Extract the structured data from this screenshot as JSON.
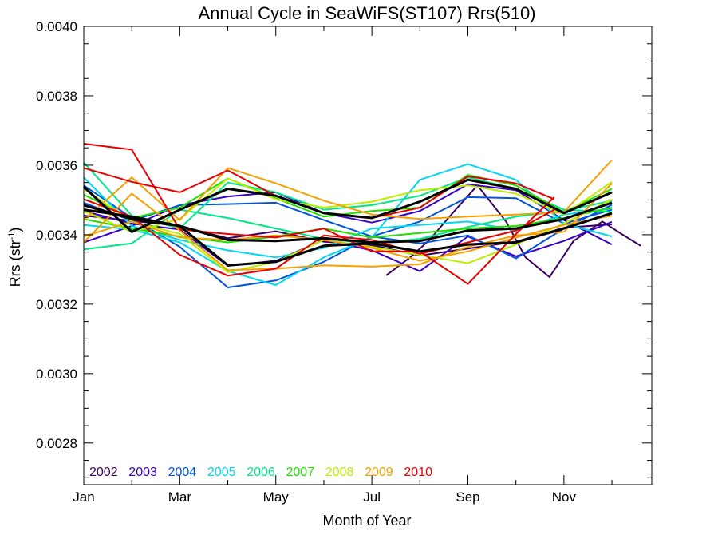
{
  "chart_data": {
    "type": "line",
    "title": "Annual Cycle in SeaWiFS(ST107) Rrs(510)",
    "xlabel": "Month of Year",
    "ylabel": {
      "main": "Rrs (str",
      "sup": "-1",
      "close": ")"
    },
    "x_ticks": [
      {
        "value": 1,
        "label": "Jan"
      },
      {
        "value": 3,
        "label": "Mar"
      },
      {
        "value": 5,
        "label": "May"
      },
      {
        "value": 7,
        "label": "Jul"
      },
      {
        "value": 9,
        "label": "Sep"
      },
      {
        "value": 11,
        "label": "Nov"
      }
    ],
    "xlim": [
      1,
      12.83
    ],
    "ylim": [
      0.00268,
      0.004
    ],
    "y_ticks": [
      "0.0028",
      "0.0030",
      "0.0032",
      "0.0034",
      "0.0036",
      "0.0038",
      "0.0040"
    ],
    "grid": false,
    "legend_position": "bottom-left",
    "series": [
      {
        "name": "2002",
        "color": "#3b0060",
        "x": [
          7.3,
          7.8,
          8.2,
          8.7,
          9.2,
          9.8,
          10.2,
          10.7,
          11.2,
          11.8,
          12.2,
          12.6
        ],
        "y": [
          0.003283,
          0.003335,
          0.003385,
          0.003465,
          0.003542,
          0.003437,
          0.003335,
          0.003278,
          0.003382,
          0.003438,
          0.003402,
          0.003368
        ]
      },
      {
        "name": "2002",
        "color": "#3b0060",
        "x": [
          1,
          2,
          3,
          4,
          5,
          6,
          7,
          8,
          9,
          10,
          11,
          12
        ],
        "y": [
          0.003455,
          0.00344,
          0.003425,
          0.00339,
          0.00341,
          0.00338,
          0.00337,
          0.00334,
          0.00336,
          0.00338,
          0.00342,
          0.00343
        ]
      },
      {
        "name": "2003",
        "color": "#3a00c8",
        "x": [
          1,
          2,
          3,
          4,
          5,
          6,
          7,
          8,
          9,
          10,
          11,
          12
        ],
        "y": [
          0.003468,
          0.003432,
          0.003415,
          0.00331,
          0.003325,
          0.003385,
          0.003355,
          0.003295,
          0.003395,
          0.003338,
          0.003382,
          0.003437
        ]
      },
      {
        "name": "2003",
        "color": "#3a00c8",
        "x": [
          1,
          2,
          3,
          4,
          5,
          6,
          7,
          8,
          9,
          10,
          11,
          12
        ],
        "y": [
          0.003378,
          0.003425,
          0.003485,
          0.00351,
          0.003522,
          0.003462,
          0.003435,
          0.003468,
          0.003545,
          0.003528,
          0.003442,
          0.003372
        ]
      },
      {
        "name": "2004",
        "color": "#0055e0",
        "x": [
          1,
          2,
          3,
          4,
          5,
          6,
          7,
          8,
          9,
          10,
          11,
          12
        ],
        "y": [
          0.003542,
          0.003448,
          0.003365,
          0.003248,
          0.003268,
          0.003322,
          0.003395,
          0.003375,
          0.003398,
          0.003332,
          0.003418,
          0.003486
        ]
      },
      {
        "name": "2004",
        "color": "#0055e0",
        "x": [
          1,
          2,
          3,
          4,
          5,
          6,
          7,
          8,
          9,
          10,
          11,
          12
        ],
        "y": [
          0.003492,
          0.00344,
          0.003485,
          0.003488,
          0.003492,
          0.003442,
          0.003395,
          0.003438,
          0.003508,
          0.003505,
          0.003432,
          0.003472
        ]
      },
      {
        "name": "2005",
        "color": "#00d8f0",
        "x": [
          1,
          2,
          3,
          4,
          5,
          6,
          7,
          8,
          9,
          10,
          11,
          12
        ],
        "y": [
          0.003428,
          0.003415,
          0.003378,
          0.003295,
          0.003255,
          0.003335,
          0.003392,
          0.003558,
          0.003603,
          0.003558,
          0.003432,
          0.003395
        ]
      },
      {
        "name": "2005",
        "color": "#00d8f0",
        "x": [
          1,
          2,
          3,
          4,
          5,
          6,
          7,
          8,
          9,
          10,
          11,
          12
        ],
        "y": [
          0.003565,
          0.003425,
          0.003385,
          0.003355,
          0.003335,
          0.003362,
          0.003418,
          0.003428,
          0.003438,
          0.003412,
          0.003458,
          0.003475
        ]
      },
      {
        "name": "2006",
        "color": "#00e884",
        "x": [
          1,
          2,
          3,
          4,
          5,
          6,
          7,
          8,
          9,
          10,
          11,
          12
        ],
        "y": [
          0.003608,
          0.003455,
          0.003418,
          0.00355,
          0.003522,
          0.003472,
          0.003485,
          0.003512,
          0.003565,
          0.003532,
          0.003472,
          0.003465
        ]
      },
      {
        "name": "2006",
        "color": "#00e884",
        "x": [
          1,
          2,
          3,
          4,
          5,
          6,
          7,
          8,
          9,
          10,
          11,
          12
        ],
        "y": [
          0.003358,
          0.003375,
          0.003472,
          0.003448,
          0.003418,
          0.003388,
          0.003375,
          0.003388,
          0.003422,
          0.003452,
          0.003468,
          0.003498
        ]
      },
      {
        "name": "2007",
        "color": "#22dd00",
        "x": [
          1,
          2,
          3,
          4,
          5,
          6,
          7,
          8,
          9,
          10,
          11,
          12
        ],
        "y": [
          0.003515,
          0.003448,
          0.003478,
          0.003562,
          0.003505,
          0.003452,
          0.003468,
          0.003478,
          0.003572,
          0.003542,
          0.003465,
          0.003532
        ]
      },
      {
        "name": "2007",
        "color": "#22dd00",
        "x": [
          1,
          2,
          3,
          4,
          5,
          6,
          7,
          8,
          9,
          10,
          11,
          12
        ],
        "y": [
          0.003445,
          0.003418,
          0.003395,
          0.003378,
          0.003395,
          0.003418,
          0.003392,
          0.003405,
          0.003418,
          0.003425,
          0.003448,
          0.003478
        ]
      },
      {
        "name": "2008",
        "color": "#bbee00",
        "x": [
          1,
          2,
          3,
          4,
          5,
          6,
          7,
          8,
          9,
          10,
          11,
          12
        ],
        "y": [
          0.003532,
          0.003438,
          0.003402,
          0.003292,
          0.003322,
          0.003385,
          0.003365,
          0.003342,
          0.003318,
          0.003372,
          0.003432,
          0.003502
        ]
      },
      {
        "name": "2008",
        "color": "#bbee00",
        "x": [
          1,
          2,
          3,
          4,
          5,
          6,
          7,
          8,
          9,
          10,
          11,
          12
        ],
        "y": [
          0.003468,
          0.003408,
          0.003445,
          0.003562,
          0.003502,
          0.003478,
          0.003495,
          0.003528,
          0.003542,
          0.003518,
          0.003458,
          0.003552
        ]
      },
      {
        "name": "2009",
        "color": "#f5a000",
        "x": [
          1,
          2,
          3,
          4,
          5,
          6,
          7,
          8,
          9,
          10,
          11,
          12
        ],
        "y": [
          0.003442,
          0.003565,
          0.003442,
          0.003592,
          0.003548,
          0.003498,
          0.003458,
          0.003445,
          0.003452,
          0.003458,
          0.003465,
          0.003615
        ]
      },
      {
        "name": "2009",
        "color": "#f5a000",
        "x": [
          1,
          2,
          3,
          4,
          5,
          6,
          7,
          8,
          9,
          10,
          11,
          12
        ],
        "y": [
          0.003378,
          0.003518,
          0.003412,
          0.003298,
          0.003302,
          0.003312,
          0.003308,
          0.003315,
          0.003365,
          0.003398,
          0.003408,
          0.003548
        ]
      },
      {
        "name": "2009",
        "color": "#f5a000",
        "x": [
          1,
          2,
          3,
          4,
          5,
          6,
          7,
          8,
          9,
          10,
          11,
          12
        ],
        "y": [
          0.003395,
          0.003438,
          0.003392,
          0.003385,
          0.003398,
          0.003385,
          0.003362,
          0.003325,
          0.003352,
          0.003392,
          0.003428,
          0.003455
        ]
      },
      {
        "name": "2010",
        "color": "#e80000",
        "x": [
          1,
          2,
          3,
          4,
          5,
          6,
          7,
          8,
          9,
          10,
          10.8
        ],
        "y": [
          0.003662,
          0.003645,
          0.003415,
          0.003402,
          0.003392,
          0.003418,
          0.003352,
          0.003352,
          0.003258,
          0.003402,
          0.003508
        ]
      },
      {
        "name": "2010",
        "color": "#e80000",
        "x": [
          1,
          2,
          3,
          4,
          5,
          6,
          7,
          8,
          9,
          10,
          10.8
        ],
        "y": [
          0.003592,
          0.003552,
          0.003522,
          0.003585,
          0.003512,
          0.003462,
          0.003448,
          0.003478,
          0.003568,
          0.003548,
          0.003502
        ]
      },
      {
        "name": "2010",
        "color": "#e80000",
        "x": [
          1,
          2,
          3,
          4,
          5,
          6,
          7,
          8,
          9,
          10,
          10.8
        ],
        "y": [
          0.003502,
          0.003452,
          0.003342,
          0.003282,
          0.003302,
          0.003398,
          0.003385,
          0.003345,
          0.003378,
          0.003412,
          0.003472
        ]
      },
      {
        "name": "",
        "color": "#000000",
        "width": 3,
        "x": [
          1,
          2,
          3,
          4,
          5,
          6,
          7,
          8,
          9,
          10,
          11,
          12
        ],
        "y": [
          0.003485,
          0.003445,
          0.003425,
          0.003385,
          0.003382,
          0.00339,
          0.003378,
          0.003382,
          0.003412,
          0.003418,
          0.003445,
          0.003492
        ]
      },
      {
        "name": "",
        "color": "#000000",
        "width": 3,
        "x": [
          1,
          2,
          3,
          4,
          5,
          6,
          7,
          8,
          9,
          10,
          11,
          12
        ],
        "y": [
          0.003538,
          0.003408,
          0.003472,
          0.003532,
          0.003512,
          0.003462,
          0.003448,
          0.003495,
          0.003558,
          0.003532,
          0.003462,
          0.003522
        ]
      },
      {
        "name": "",
        "color": "#000000",
        "width": 3,
        "x": [
          1,
          2,
          3,
          4,
          5,
          6,
          7,
          8,
          9,
          10,
          11,
          12
        ],
        "y": [
          0.003472,
          0.003452,
          0.003425,
          0.003312,
          0.003322,
          0.003368,
          0.003375,
          0.003352,
          0.003372,
          0.003378,
          0.003418,
          0.003462
        ]
      }
    ],
    "legend": [
      {
        "label": "2002",
        "color": "#3b0060"
      },
      {
        "label": "2003",
        "color": "#3a00c8"
      },
      {
        "label": "2004",
        "color": "#0055e0"
      },
      {
        "label": "2005",
        "color": "#00d8f0"
      },
      {
        "label": "2006",
        "color": "#00e884"
      },
      {
        "label": "2007",
        "color": "#22dd00"
      },
      {
        "label": "2008",
        "color": "#bbee00"
      },
      {
        "label": "2009",
        "color": "#f5a000"
      },
      {
        "label": "2010",
        "color": "#e80000"
      }
    ]
  }
}
